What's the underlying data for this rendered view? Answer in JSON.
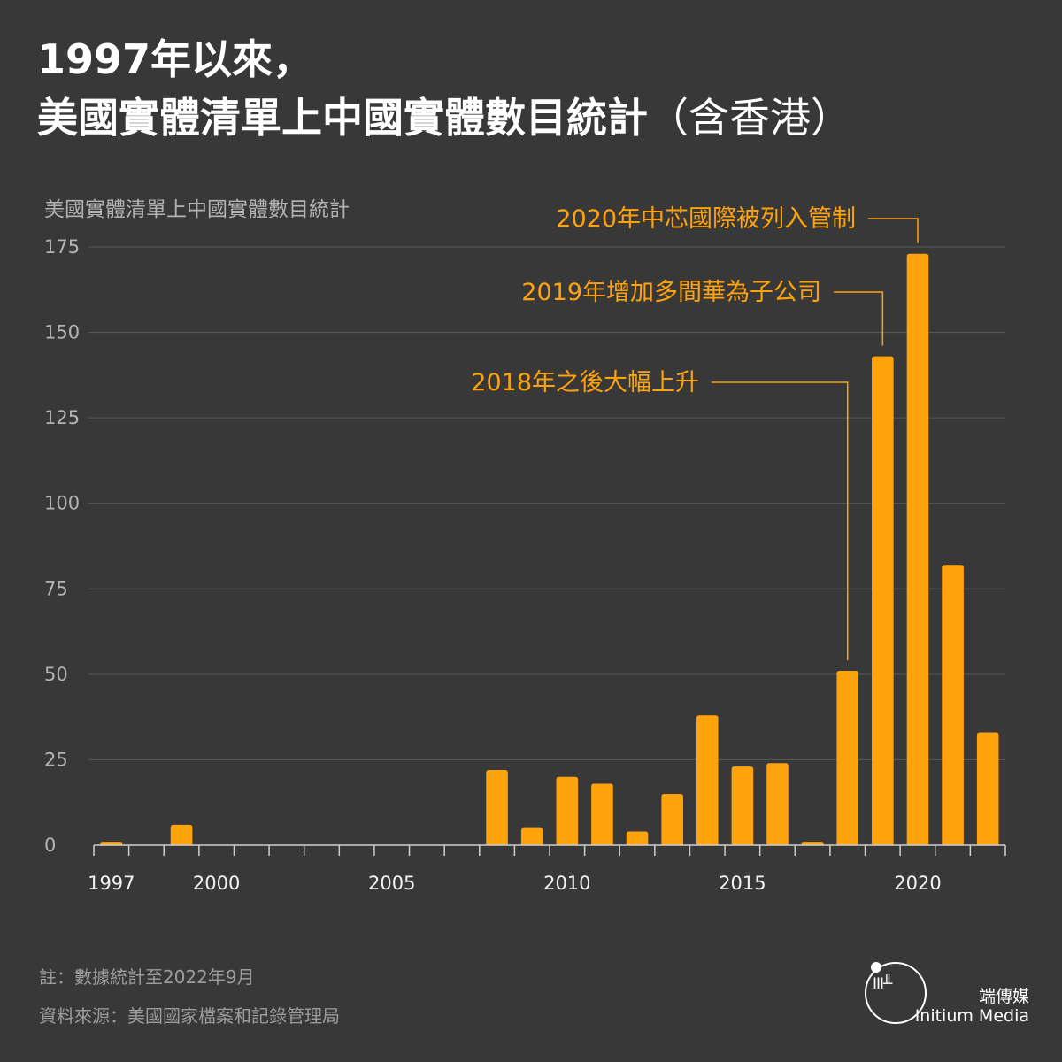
{
  "title": {
    "line1": "1997年以來，",
    "line2_main": "美國實體清單上中國實體數目統計",
    "line2_suffix": "（含香港）"
  },
  "chart_data": {
    "type": "bar",
    "ylabel": "美國實體清單上中國實體數目統計",
    "ylim": [
      0,
      175
    ],
    "yticks": [
      0,
      25,
      50,
      75,
      100,
      125,
      150,
      175
    ],
    "x_tick_labels": [
      "1997",
      "2000",
      "2005",
      "2010",
      "2015",
      "2020"
    ],
    "x": [
      1997,
      1998,
      1999,
      2000,
      2001,
      2002,
      2003,
      2004,
      2005,
      2006,
      2007,
      2008,
      2009,
      2010,
      2011,
      2012,
      2013,
      2014,
      2015,
      2016,
      2017,
      2018,
      2019,
      2020,
      2021,
      2022
    ],
    "values": [
      1,
      0,
      6,
      0,
      0,
      0,
      0,
      0,
      0,
      0,
      0,
      22,
      5,
      20,
      18,
      4,
      15,
      38,
      23,
      24,
      1,
      51,
      143,
      173,
      82,
      33
    ],
    "grid": true,
    "bar_color": "#ffa30d",
    "annotations": [
      {
        "text": "2020年中芯國際被列入管制",
        "x": 2020,
        "y": 173
      },
      {
        "text": "2019年增加多間華為子公司",
        "x": 2019,
        "y": 143
      },
      {
        "text": "2018年之後大幅上升",
        "x": 2018,
        "y": 51
      }
    ]
  },
  "footer": {
    "note": "註：數據統計至2022年9月",
    "source": "資料來源：美國國家檔案和記錄管理局"
  },
  "brand": {
    "logo_glyph": "ΙΙΙ╨",
    "name_cn": "端傳媒",
    "name_en": "Initium Media"
  },
  "colors": {
    "background": "#383838",
    "accent": "#ffa30d"
  }
}
